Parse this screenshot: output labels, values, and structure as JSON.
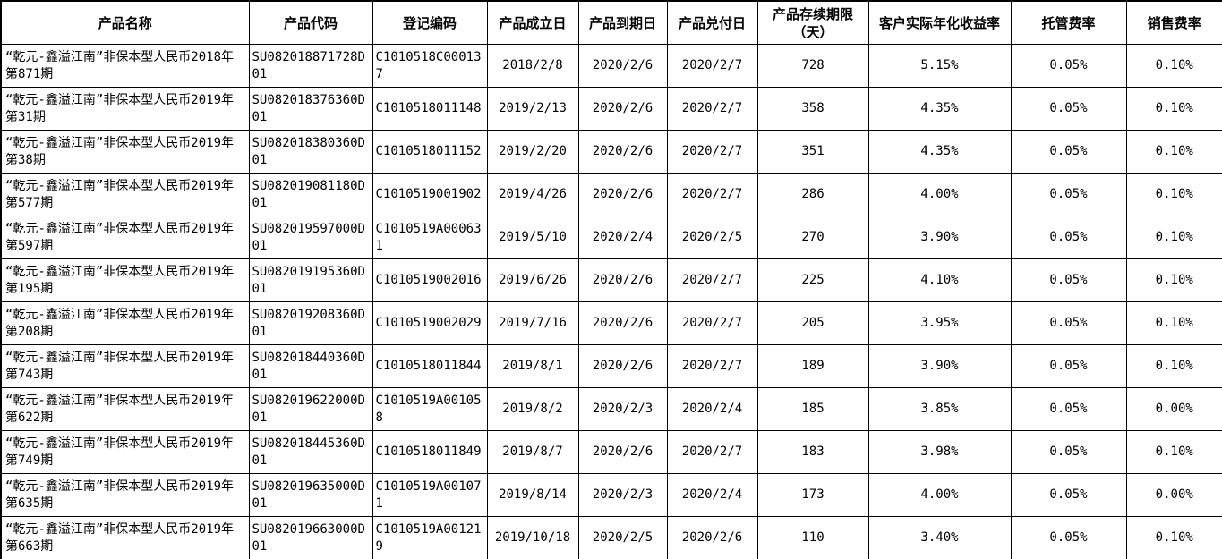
{
  "table": {
    "columns": [
      "产品名称",
      "产品代码",
      "登记编码",
      "产品成立日",
      "产品到期日",
      "产品兑付日",
      "产品存续期限（天）",
      "客户实际年化收益率",
      "托管费率",
      "销售费率"
    ],
    "rows": [
      [
        "“乾元-鑫溢江南”非保本型人民币2018年第871期",
        "SU082018871728D01",
        "C1010518C000137",
        "2018/2/8",
        "2020/2/6",
        "2020/2/7",
        "728",
        "5.15%",
        "0.05%",
        "0.10%"
      ],
      [
        "“乾元-鑫溢江南”非保本型人民币2019年第31期",
        "SU082018376360D01",
        "C1010518011148",
        "2019/2/13",
        "2020/2/6",
        "2020/2/7",
        "358",
        "4.35%",
        "0.05%",
        "0.10%"
      ],
      [
        "“乾元-鑫溢江南”非保本型人民币2019年第38期",
        "SU082018380360D01",
        "C1010518011152",
        "2019/2/20",
        "2020/2/6",
        "2020/2/7",
        "351",
        "4.35%",
        "0.05%",
        "0.10%"
      ],
      [
        "“乾元-鑫溢江南”非保本型人民币2019年第577期",
        "SU082019081180D01",
        "C1010519001902",
        "2019/4/26",
        "2020/2/6",
        "2020/2/7",
        "286",
        "4.00%",
        "0.05%",
        "0.10%"
      ],
      [
        "“乾元-鑫溢江南”非保本型人民币2019年第597期",
        "SU082019597000D01",
        "C1010519A000631",
        "2019/5/10",
        "2020/2/4",
        "2020/2/5",
        "270",
        "3.90%",
        "0.05%",
        "0.10%"
      ],
      [
        "“乾元-鑫溢江南”非保本型人民币2019年第195期",
        "SU082019195360D01",
        "C1010519002016",
        "2019/6/26",
        "2020/2/6",
        "2020/2/7",
        "225",
        "4.10%",
        "0.05%",
        "0.10%"
      ],
      [
        "“乾元-鑫溢江南”非保本型人民币2019年第208期",
        "SU082019208360D01",
        "C1010519002029",
        "2019/7/16",
        "2020/2/6",
        "2020/2/7",
        "205",
        "3.95%",
        "0.05%",
        "0.10%"
      ],
      [
        "“乾元-鑫溢江南”非保本型人民币2019年第743期",
        "SU082018440360D01",
        "C1010518011844",
        "2019/8/1",
        "2020/2/6",
        "2020/2/7",
        "189",
        "3.90%",
        "0.05%",
        "0.10%"
      ],
      [
        "“乾元-鑫溢江南”非保本型人民币2019年第622期",
        "SU082019622000D01",
        "C1010519A001058",
        "2019/8/2",
        "2020/2/3",
        "2020/2/4",
        "185",
        "3.85%",
        "0.05%",
        "0.00%"
      ],
      [
        "“乾元-鑫溢江南”非保本型人民币2019年第749期",
        "SU082018445360D01",
        "C1010518011849",
        "2019/8/7",
        "2020/2/6",
        "2020/2/7",
        "183",
        "3.98%",
        "0.05%",
        "0.10%"
      ],
      [
        "“乾元-鑫溢江南”非保本型人民币2019年第635期",
        "SU082019635000D01",
        "C1010519A001071",
        "2019/8/14",
        "2020/2/3",
        "2020/2/4",
        "173",
        "4.00%",
        "0.05%",
        "0.00%"
      ],
      [
        "“乾元-鑫溢江南”非保本型人民币2019年第663期",
        "SU082019663000D01",
        "C1010519A001219",
        "2019/10/18",
        "2020/2/5",
        "2020/2/6",
        "110",
        "3.40%",
        "0.05%",
        "0.10%"
      ]
    ],
    "colors": {
      "border": "#000000",
      "text": "#000000",
      "background": "#ffffff"
    }
  }
}
